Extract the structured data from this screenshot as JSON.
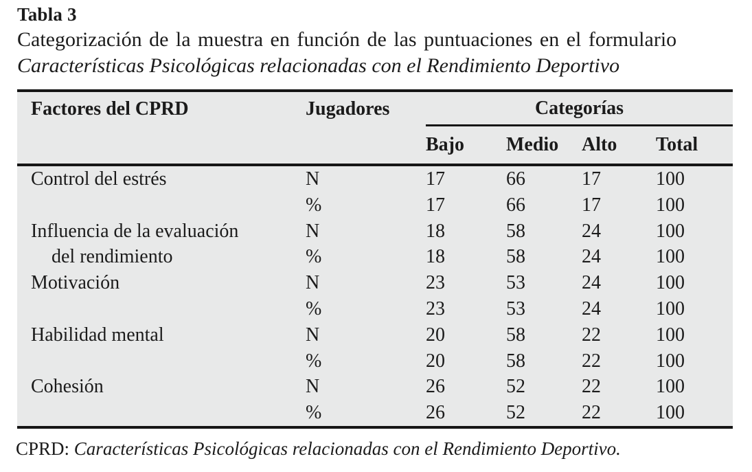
{
  "title": {
    "label": "Tabla 3",
    "caption": "Categorización de la muestra en función de las puntuaciones en el formulario",
    "caption_italic": "Características Psicológicas relacionadas con el Rendimiento Deportivo"
  },
  "table": {
    "headers": {
      "factor": "Factores del CPRD",
      "jugadores": "Jugadores",
      "categorias": "Categorías",
      "bajo": "Bajo",
      "medio": "Medio",
      "alto": "Alto",
      "total": "Total"
    },
    "rows": [
      {
        "factor": "Control del estrés",
        "jugadores": "N",
        "bajo": "17",
        "medio": "66",
        "alto": "17",
        "total": "100"
      },
      {
        "factor": "",
        "jugadores": "%",
        "bajo": "17",
        "medio": "66",
        "alto": "17",
        "total": "100"
      },
      {
        "factor": "Influencia de la evaluación",
        "jugadores": "N",
        "bajo": "18",
        "medio": "58",
        "alto": "24",
        "total": "100"
      },
      {
        "factor": "del rendimiento",
        "jugadores": "%",
        "bajo": "18",
        "medio": "58",
        "alto": "24",
        "total": "100"
      },
      {
        "factor": "Motivación",
        "jugadores": "N",
        "bajo": "23",
        "medio": "53",
        "alto": "24",
        "total": "100"
      },
      {
        "factor": "",
        "jugadores": "%",
        "bajo": "23",
        "medio": "53",
        "alto": "24",
        "total": "100"
      },
      {
        "factor": "Habilidad mental",
        "jugadores": "N",
        "bajo": "20",
        "medio": "58",
        "alto": "22",
        "total": "100"
      },
      {
        "factor": "",
        "jugadores": "%",
        "bajo": "20",
        "medio": "58",
        "alto": "22",
        "total": "100"
      },
      {
        "factor": "Cohesión",
        "jugadores": "N",
        "bajo": "26",
        "medio": "52",
        "alto": "22",
        "total": "100"
      },
      {
        "factor": "",
        "jugadores": "%",
        "bajo": "26",
        "medio": "52",
        "alto": "22",
        "total": "100"
      }
    ]
  },
  "footnote": {
    "abbr": "CPRD: ",
    "text_italic": "Características Psicológicas relacionadas con el Rendimiento Deportivo."
  },
  "colors": {
    "table_background": "#e8e9e9",
    "rule": "#161616",
    "text": "#1b1b1b",
    "page_background": "#ffffff"
  }
}
